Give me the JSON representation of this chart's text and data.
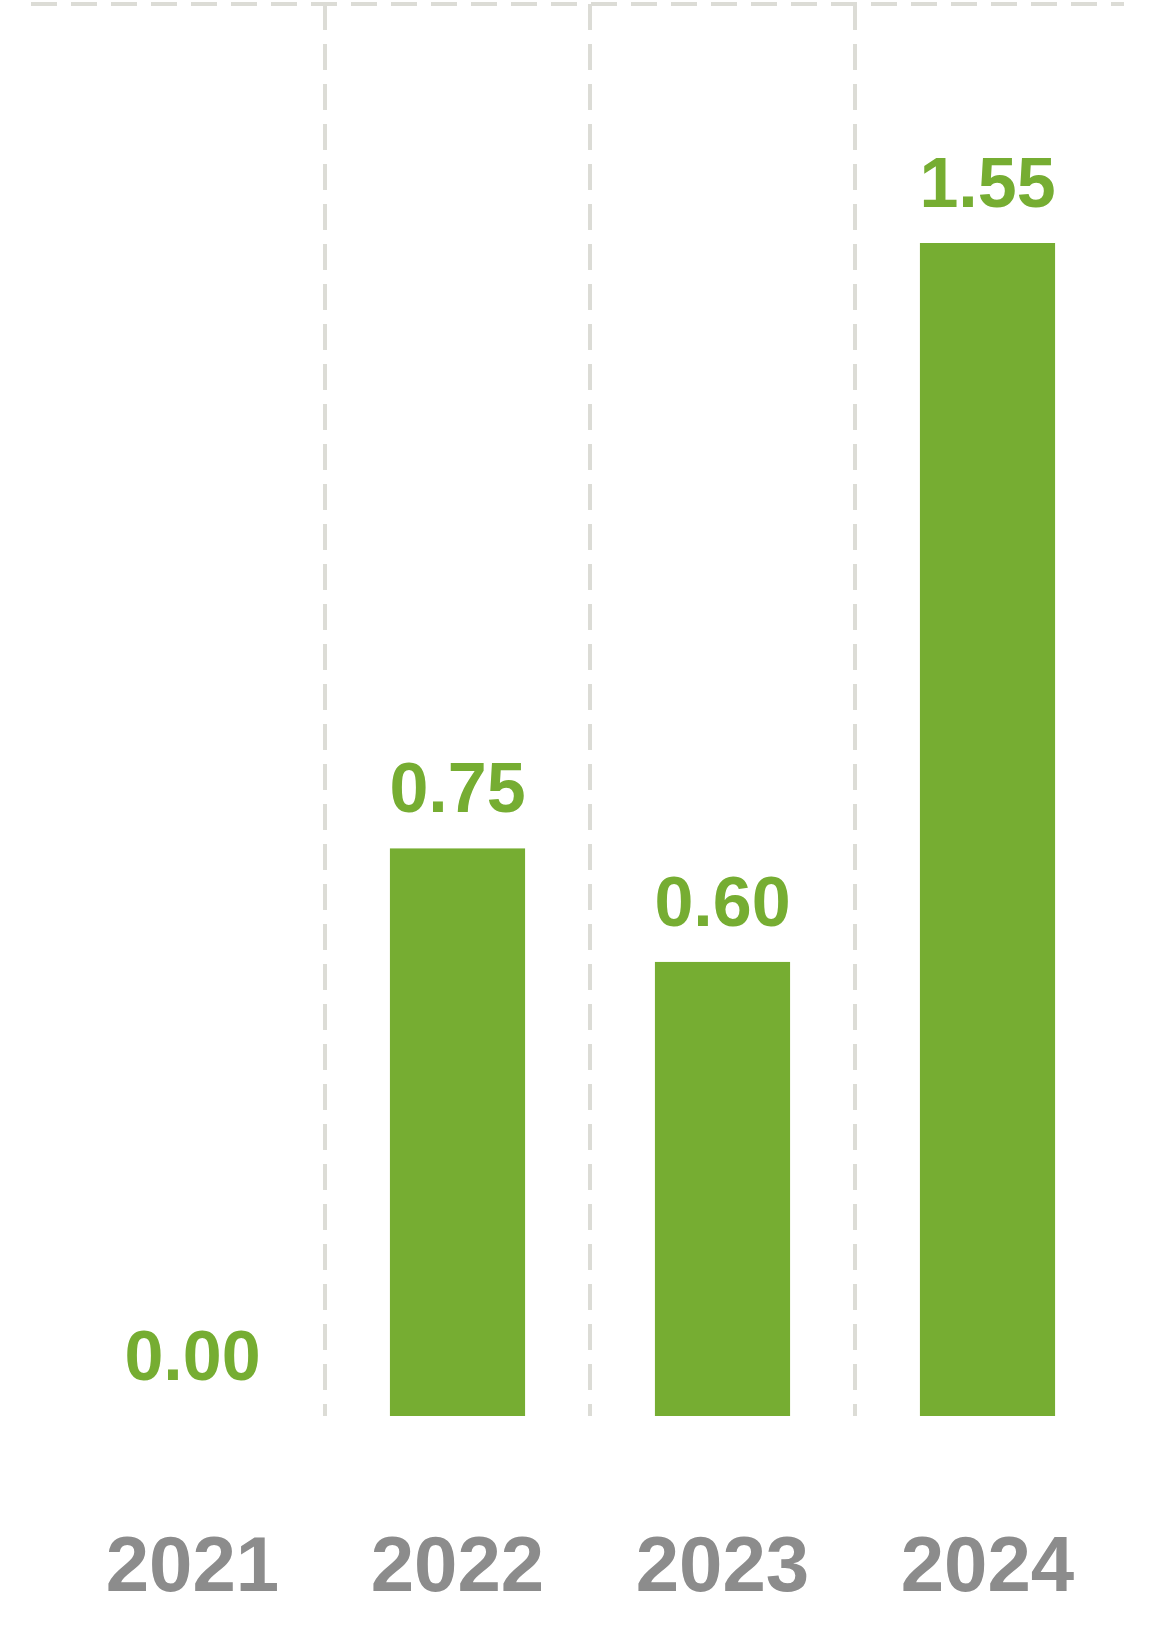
{
  "chart_data": {
    "type": "bar",
    "categories": [
      "2021",
      "2022",
      "2023",
      "2024"
    ],
    "values": [
      0,
      0.75,
      0.6,
      1.55
    ],
    "value_labels": [
      "0.00",
      "0.75",
      "0.60",
      "1.55"
    ],
    "color": "#76ad32"
  }
}
